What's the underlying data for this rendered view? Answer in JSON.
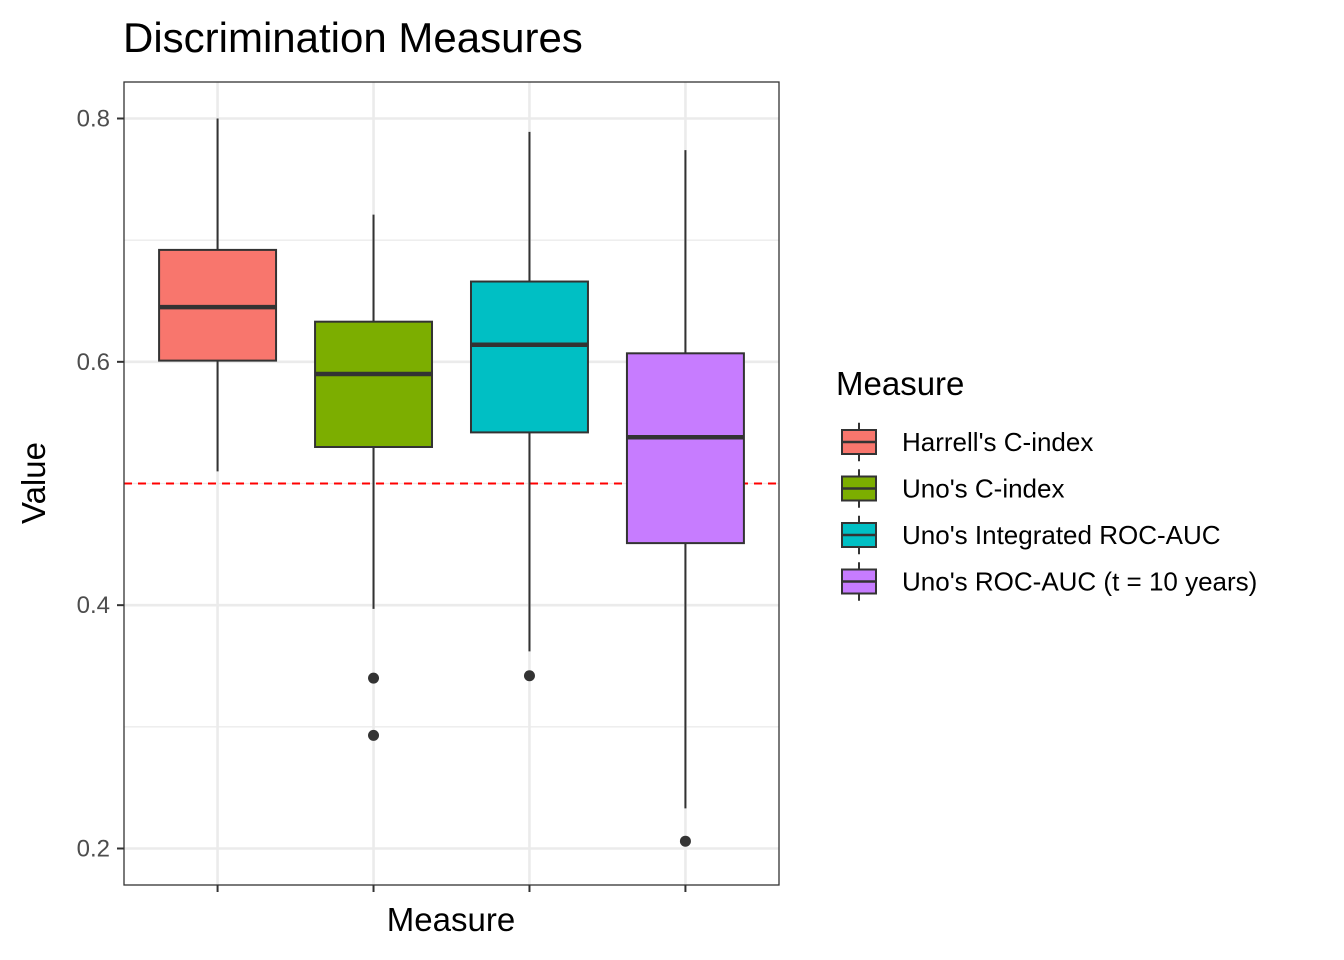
{
  "chart_data": {
    "type": "box",
    "title": "Discrimination Measures",
    "xlabel": "Measure",
    "ylabel": "Value",
    "ylim": [
      0.17,
      0.83
    ],
    "yticks": [
      0.2,
      0.4,
      0.6,
      0.8
    ],
    "ytick_labels": [
      "0.2",
      "0.4",
      "0.6",
      "0.8"
    ],
    "grid": true,
    "reference_line": {
      "y": 0.5,
      "color": "#ff0000",
      "style": "dashed"
    },
    "legend": {
      "title": "Measure",
      "placement": "right"
    },
    "series": [
      {
        "name": "Harrell's C-index",
        "color": "#F8766D",
        "whisker_low": 0.51,
        "q1": 0.601,
        "median": 0.645,
        "q3": 0.692,
        "whisker_high": 0.8,
        "outliers": []
      },
      {
        "name": "Uno's C-index",
        "color": "#7CAE00",
        "whisker_low": 0.397,
        "q1": 0.53,
        "median": 0.59,
        "q3": 0.633,
        "whisker_high": 0.721,
        "outliers": [
          0.34,
          0.293
        ]
      },
      {
        "name": "Uno's Integrated ROC-AUC",
        "color": "#00BFC4",
        "whisker_low": 0.362,
        "q1": 0.542,
        "median": 0.614,
        "q3": 0.666,
        "whisker_high": 0.789,
        "outliers": [
          0.342
        ]
      },
      {
        "name": "Uno's ROC-AUC (t = 10 years)",
        "color": "#C77CFF",
        "whisker_low": 0.233,
        "q1": 0.451,
        "median": 0.538,
        "q3": 0.607,
        "whisker_high": 0.774,
        "outliers": [
          0.206
        ]
      }
    ]
  }
}
